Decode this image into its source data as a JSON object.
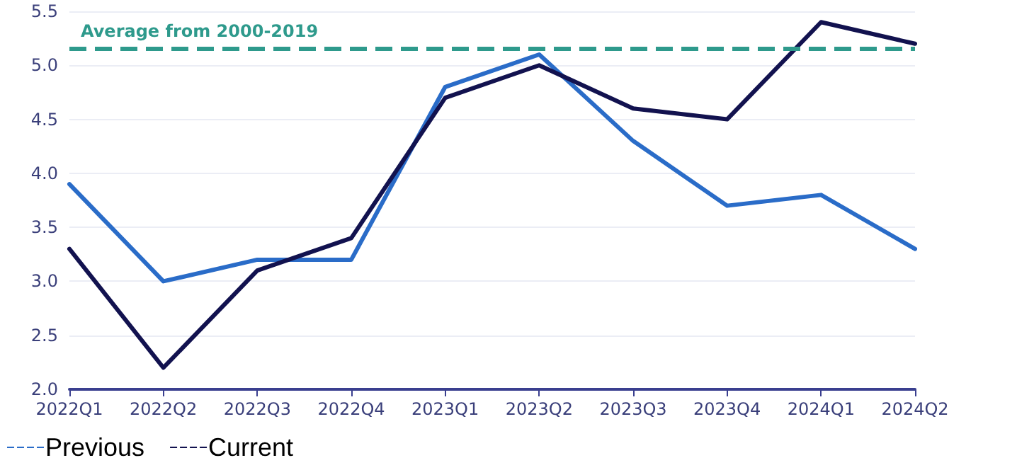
{
  "chart_data": {
    "type": "line",
    "categories": [
      "2022Q1",
      "2022Q2",
      "2022Q3",
      "2022Q4",
      "2023Q1",
      "2023Q2",
      "2023Q3",
      "2023Q4",
      "2024Q1",
      "2024Q2"
    ],
    "series": [
      {
        "name": "Previous",
        "color": "#2a6cc8",
        "values": [
          3.9,
          3.0,
          3.2,
          3.2,
          4.8,
          5.1,
          4.3,
          3.7,
          3.8,
          3.3
        ]
      },
      {
        "name": "Current",
        "color": "#12124f",
        "values": [
          3.3,
          2.2,
          3.1,
          3.4,
          4.7,
          5.0,
          4.6,
          4.5,
          5.4,
          5.2
        ]
      }
    ],
    "ylim": [
      2.0,
      5.5
    ],
    "yticks": [
      {
        "value": 2,
        "label": "2.0"
      },
      {
        "value": 2.5,
        "label": "2.5"
      },
      {
        "value": 3,
        "label": "3.0"
      },
      {
        "value": 3.5,
        "label": "3.5"
      },
      {
        "value": 4,
        "label": "4.0"
      },
      {
        "value": 4.5,
        "label": "4.5"
      },
      {
        "value": 5,
        "label": "5.0"
      },
      {
        "value": 5.5,
        "label": "5.5"
      }
    ],
    "ref_lines": [
      {
        "axis": "y",
        "value": 5.16,
        "label": "Average from 2000-2019",
        "color": "#2e9a8c",
        "line_style": "dashed"
      }
    ],
    "grid": "y",
    "legend": "bottom left",
    "marker": "none",
    "line_style": "solid"
  }
}
